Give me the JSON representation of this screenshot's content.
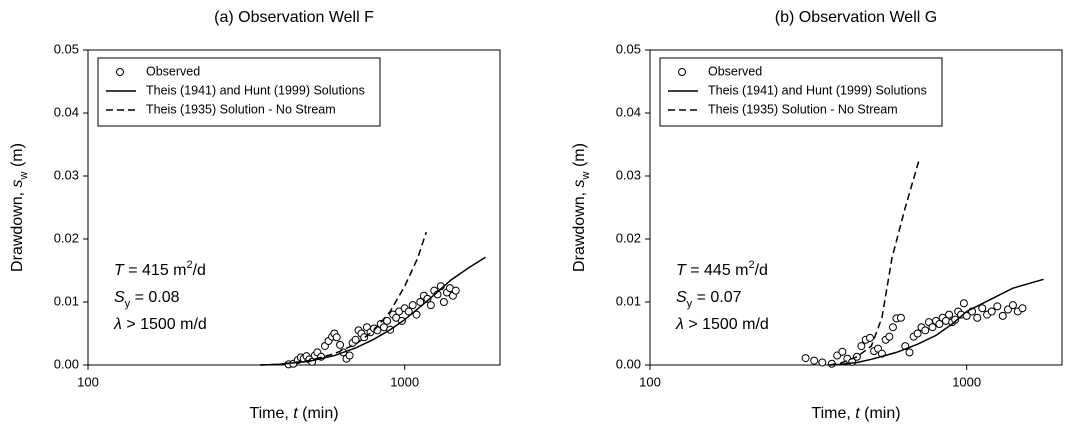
{
  "chart_data": [
    {
      "type": "line",
      "title": "(a) Observation Well F",
      "x_label": [
        {
          "text": "Time, "
        },
        {
          "text": "t",
          "style": "italic"
        },
        {
          "text": " (min)"
        }
      ],
      "y_label": [
        {
          "text": "Drawdown, "
        },
        {
          "text": "s",
          "style": "italic"
        },
        {
          "text": "w",
          "style": "sub"
        },
        {
          "text": " (m)"
        }
      ],
      "annotations": [
        [
          {
            "text": "T",
            "style": "italic"
          },
          {
            "text": " = 415 m"
          },
          {
            "text": "2",
            "style": "sup"
          },
          {
            "text": "/d"
          }
        ],
        [
          {
            "text": "S",
            "style": "italic"
          },
          {
            "text": "y",
            "style": "sub"
          },
          {
            "text": " = 0.08"
          }
        ],
        [
          {
            "text": "λ",
            "style": "italic"
          },
          {
            "text": " > 1500 m/d"
          }
        ]
      ],
      "log_x": true,
      "legend": "upper left",
      "xlim": [
        100,
        2000
      ],
      "xticks": [
        100,
        1000
      ],
      "ylim": [
        0,
        0.05
      ],
      "yticks": [
        {
          "value": 0,
          "label": "0.00"
        },
        {
          "value": 0.01,
          "label": "0.01"
        },
        {
          "value": 0.02,
          "label": "0.02"
        },
        {
          "value": 0.03,
          "label": "0.03"
        },
        {
          "value": 0.04,
          "label": "0.04"
        },
        {
          "value": 0.05,
          "label": "0.05"
        }
      ],
      "series": [
        {
          "name": "Observed",
          "style": "markers",
          "color": "#000000",
          "x": [
            430,
            445,
            460,
            470,
            480,
            490,
            500,
            510,
            520,
            530,
            545,
            560,
            575,
            590,
            600,
            610,
            625,
            640,
            655,
            670,
            685,
            700,
            715,
            730,
            745,
            760,
            780,
            800,
            820,
            840,
            860,
            880,
            900,
            920,
            940,
            960,
            980,
            1000,
            1030,
            1060,
            1090,
            1120,
            1150,
            1180,
            1210,
            1240,
            1270,
            1300,
            1330,
            1360,
            1390,
            1420,
            1450
          ],
          "values": [
            0.0001,
            0.0002,
            0.0008,
            0.0012,
            0.001,
            0.0014,
            0.0009,
            0.0005,
            0.0015,
            0.002,
            0.0013,
            0.003,
            0.0038,
            0.0045,
            0.005,
            0.0044,
            0.0032,
            0.002,
            0.001,
            0.0015,
            0.0035,
            0.004,
            0.0055,
            0.005,
            0.0044,
            0.006,
            0.0052,
            0.0058,
            0.0055,
            0.0065,
            0.006,
            0.007,
            0.0056,
            0.008,
            0.0075,
            0.0085,
            0.007,
            0.009,
            0.0085,
            0.0095,
            0.008,
            0.01,
            0.011,
            0.0105,
            0.0095,
            0.0118,
            0.0112,
            0.0125,
            0.01,
            0.0115,
            0.0122,
            0.011,
            0.0118
          ]
        },
        {
          "name": "Theis (1941) and Hunt (1999) Solutions",
          "style": "solid",
          "color": "#000000",
          "x": [
            350,
            400,
            500,
            600,
            700,
            800,
            900,
            1000,
            1200,
            1400,
            1600,
            1800
          ],
          "values": [
            0,
            0.0001,
            0.0006,
            0.0015,
            0.0027,
            0.0041,
            0.0056,
            0.0072,
            0.0105,
            0.0135,
            0.0155,
            0.0171
          ]
        },
        {
          "name": "Theis (1935) Solution - No Stream",
          "style": "dashed",
          "color": "#000000",
          "x": [
            350,
            400,
            500,
            600,
            700,
            800,
            900,
            1000,
            1100,
            1170
          ],
          "values": [
            0,
            0.0001,
            0.0007,
            0.0018,
            0.0033,
            0.0055,
            0.0085,
            0.0125,
            0.017,
            0.0211
          ]
        }
      ]
    },
    {
      "type": "line",
      "title": "(b) Observation Well G",
      "x_label": [
        {
          "text": "Time, "
        },
        {
          "text": "t",
          "style": "italic"
        },
        {
          "text": " (min)"
        }
      ],
      "y_label": [
        {
          "text": "Drawdown, "
        },
        {
          "text": "s",
          "style": "italic"
        },
        {
          "text": "w",
          "style": "sub"
        },
        {
          "text": " (m)"
        }
      ],
      "annotations": [
        [
          {
            "text": "T",
            "style": "italic"
          },
          {
            "text": " = 445 m"
          },
          {
            "text": "2",
            "style": "sup"
          },
          {
            "text": "/d"
          }
        ],
        [
          {
            "text": "S",
            "style": "italic"
          },
          {
            "text": "y",
            "style": "sub"
          },
          {
            "text": " = 0.07"
          }
        ],
        [
          {
            "text": "λ",
            "style": "italic"
          },
          {
            "text": " > 1500 m/d"
          }
        ]
      ],
      "log_x": true,
      "legend": "upper left",
      "xlim": [
        100,
        2000
      ],
      "xticks": [
        100,
        1000
      ],
      "ylim": [
        0,
        0.05
      ],
      "yticks": [
        {
          "value": 0,
          "label": "0.00"
        },
        {
          "value": 0.01,
          "label": "0.01"
        },
        {
          "value": 0.02,
          "label": "0.02"
        },
        {
          "value": 0.03,
          "label": "0.03"
        },
        {
          "value": 0.04,
          "label": "0.04"
        },
        {
          "value": 0.05,
          "label": "0.05"
        }
      ],
      "series": [
        {
          "name": "Observed",
          "style": "markers",
          "color": "#000000",
          "x": [
            310,
            330,
            350,
            375,
            390,
            405,
            420,
            435,
            450,
            465,
            480,
            495,
            510,
            525,
            540,
            555,
            570,
            585,
            600,
            620,
            640,
            660,
            680,
            700,
            720,
            740,
            760,
            780,
            800,
            820,
            840,
            860,
            880,
            900,
            920,
            940,
            960,
            980,
            1000,
            1040,
            1080,
            1120,
            1160,
            1200,
            1250,
            1300,
            1350,
            1400,
            1450,
            1500
          ],
          "values": [
            0.0011,
            0.0007,
            0.0004,
            0.0002,
            0.0015,
            0.0021,
            0.001,
            0.0005,
            0.0013,
            0.003,
            0.004,
            0.0043,
            0.0022,
            0.0026,
            0.0018,
            0.004,
            0.0045,
            0.006,
            0.0074,
            0.0075,
            0.003,
            0.002,
            0.0045,
            0.005,
            0.006,
            0.0055,
            0.0068,
            0.006,
            0.007,
            0.0065,
            0.0075,
            0.007,
            0.008,
            0.0068,
            0.0072,
            0.0085,
            0.008,
            0.0098,
            0.0078,
            0.0085,
            0.0075,
            0.009,
            0.008,
            0.0085,
            0.0093,
            0.0078,
            0.0088,
            0.0095,
            0.0085,
            0.009
          ]
        },
        {
          "name": "Theis (1941) and Hunt (1999) Solutions",
          "style": "solid",
          "color": "#000000",
          "x": [
            370,
            400,
            450,
            500,
            600,
            700,
            800,
            900,
            1000,
            1200,
            1400,
            1750
          ],
          "values": [
            0,
            0.0001,
            0.0004,
            0.0009,
            0.002,
            0.0033,
            0.0047,
            0.0065,
            0.0085,
            0.0105,
            0.0122,
            0.0136
          ]
        },
        {
          "name": "Theis (1935) Solution - No Stream",
          "style": "dashed",
          "color": "#000000",
          "x": [
            368,
            400,
            450,
            500,
            540,
            581,
            640,
            707
          ],
          "values": [
            0,
            0.0003,
            0.0013,
            0.003,
            0.0075,
            0.017,
            0.025,
            0.0325
          ]
        }
      ]
    }
  ]
}
